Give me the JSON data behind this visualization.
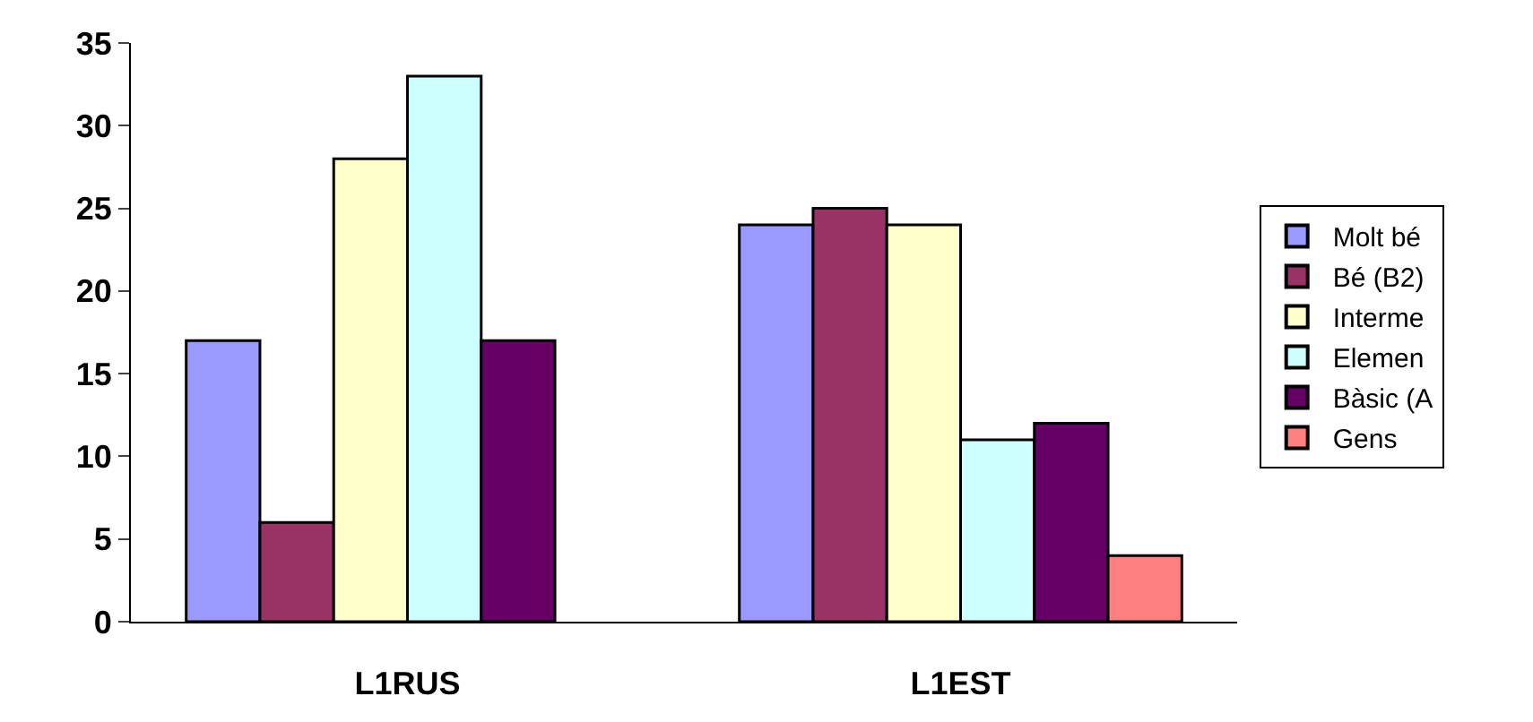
{
  "chart_data": {
    "type": "bar",
    "categories": [
      "L1RUS",
      "L1EST"
    ],
    "series": [
      {
        "name": "Molt bé",
        "color": "#9999ff",
        "values": [
          17,
          24
        ]
      },
      {
        "name": "Bé (B2)",
        "color": "#993366",
        "values": [
          6,
          25
        ]
      },
      {
        "name": "Interme",
        "color": "#ffffcc",
        "values": [
          28,
          24
        ]
      },
      {
        "name": "Elemen",
        "color": "#ccffff",
        "values": [
          33,
          11
        ]
      },
      {
        "name": "Bàsic (A",
        "color": "#660066",
        "values": [
          17,
          12
        ]
      },
      {
        "name": "Gens",
        "color": "#ff8080",
        "values": [
          null,
          4
        ]
      }
    ],
    "ylim": [
      0,
      35
    ],
    "yticks": [
      0,
      5,
      10,
      15,
      20,
      25,
      30,
      35
    ],
    "grid": false,
    "legend": "right"
  }
}
